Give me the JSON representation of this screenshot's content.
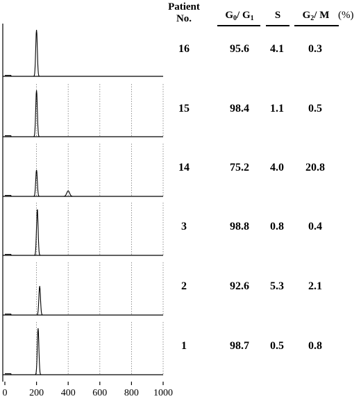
{
  "header": {
    "patient_line1": "Patient",
    "patient_line2": "No.",
    "g0g1_g0": "G",
    "g0g1_sub0": "0",
    "g0g1_sep": "/ G",
    "g0g1_sub1": "1",
    "s": "S",
    "g2m_g": "G",
    "g2m_sub": "2",
    "g2m_rest": "/ M",
    "unit": "(%)"
  },
  "chart_data": {
    "type": "histogram-panels",
    "x_ticks": [
      0,
      200,
      400,
      600,
      800,
      1000
    ],
    "xlim": [
      0,
      1000
    ],
    "grid": "vertical dotted at 200-1000",
    "panels": [
      {
        "patient": "16",
        "g0g1": "95.6",
        "s": "4.1",
        "g2m": "0.3",
        "peaks": [
          {
            "x": 200,
            "height": 0.93
          }
        ]
      },
      {
        "patient": "15",
        "g0g1": "98.4",
        "s": "1.1",
        "g2m": "0.5",
        "peaks": [
          {
            "x": 200,
            "height": 0.93
          }
        ]
      },
      {
        "patient": "14",
        "g0g1": "75.2",
        "s": "4.0",
        "g2m": "20.8",
        "peaks": [
          {
            "x": 200,
            "height": 0.53
          },
          {
            "x": 400,
            "height": 0.11
          }
        ]
      },
      {
        "patient": "3",
        "g0g1": "98.8",
        "s": "0.8",
        "g2m": "0.4",
        "peaks": [
          {
            "x": 205,
            "height": 0.93
          }
        ]
      },
      {
        "patient": "2",
        "g0g1": "92.6",
        "s": "5.3",
        "g2m": "2.1",
        "peaks": [
          {
            "x": 220,
            "height": 0.58
          }
        ]
      },
      {
        "patient": "1",
        "g0g1": "98.7",
        "s": "0.5",
        "g2m": "0.8",
        "peaks": [
          {
            "x": 210,
            "height": 0.93
          }
        ]
      }
    ]
  }
}
